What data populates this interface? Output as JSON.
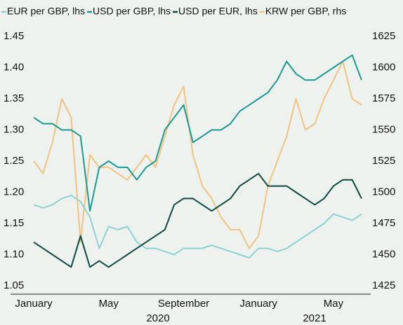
{
  "chart_data": {
    "type": "line",
    "categories": [
      "January",
      null,
      null,
      null,
      null,
      null,
      null,
      null,
      "May",
      null,
      null,
      null,
      null,
      null,
      null,
      null,
      "September",
      null,
      null,
      null,
      null,
      null,
      null,
      null,
      "January",
      null,
      null,
      null,
      null,
      null,
      null,
      null,
      "May",
      null,
      null,
      null
    ],
    "x_group_labels": [
      "2020",
      "2021"
    ],
    "ylim": [
      1.05,
      1.45
    ],
    "yticks": [
      1.05,
      {
        "value": 1.1,
        "label": "1.10"
      },
      1.15,
      {
        "value": 1.2,
        "label": "1.20"
      },
      1.25,
      {
        "value": 1.3,
        "label": "1.30"
      },
      1.35,
      {
        "value": 1.4,
        "label": "1.40"
      },
      1.45
    ],
    "y2lim": [
      1425,
      1625
    ],
    "y2ticks": [
      1425,
      1450,
      1475,
      1500,
      1525,
      1550,
      1575,
      1600,
      1625
    ],
    "legend": "top",
    "series": [
      {
        "name": "EUR per GBP, lhs",
        "color": "#8dd3d6",
        "values": [
          1.18,
          1.175,
          1.18,
          1.19,
          1.195,
          1.185,
          1.16,
          1.11,
          1.145,
          1.14,
          1.145,
          1.12,
          1.11,
          1.11,
          1.105,
          1.1,
          1.11,
          1.11,
          1.11,
          1.115,
          1.11,
          1.105,
          1.1,
          1.095,
          1.11,
          1.11,
          1.105,
          1.11,
          1.12,
          1.13,
          1.14,
          1.15,
          1.165,
          1.16,
          1.155,
          1.165
        ]
      },
      {
        "name": "USD per GBP, lhs",
        "color": "#1a9a94",
        "values": [
          1.32,
          1.31,
          1.31,
          1.3,
          1.3,
          1.29,
          1.17,
          1.24,
          1.25,
          1.24,
          1.24,
          1.22,
          1.24,
          1.25,
          1.3,
          1.32,
          1.34,
          1.28,
          1.29,
          1.3,
          1.3,
          1.31,
          1.33,
          1.34,
          1.35,
          1.36,
          1.38,
          1.41,
          1.39,
          1.38,
          1.38,
          1.39,
          1.4,
          1.41,
          1.42,
          1.38
        ]
      },
      {
        "name": "USD per EUR, lhs",
        "color": "#0d4a44",
        "values": [
          1.12,
          1.11,
          1.1,
          1.09,
          1.08,
          1.13,
          1.08,
          1.09,
          1.08,
          1.09,
          1.1,
          1.11,
          1.12,
          1.13,
          1.14,
          1.18,
          1.19,
          1.19,
          1.18,
          1.17,
          1.18,
          1.19,
          1.21,
          1.22,
          1.23,
          1.21,
          1.21,
          1.21,
          1.2,
          1.19,
          1.18,
          1.19,
          1.21,
          1.22,
          1.22,
          1.19
        ]
      },
      {
        "name": "KRW per GBP, rhs",
        "color": "#f3c27e",
        "axis": "y2",
        "values": [
          1525,
          1515,
          1540,
          1575,
          1560,
          1460,
          1530,
          1520,
          1520,
          1515,
          1510,
          1520,
          1530,
          1520,
          1545,
          1570,
          1585,
          1530,
          1505,
          1495,
          1480,
          1470,
          1470,
          1455,
          1465,
          1505,
          1525,
          1545,
          1575,
          1550,
          1555,
          1575,
          1590,
          1605,
          1575,
          1570
        ]
      }
    ]
  }
}
